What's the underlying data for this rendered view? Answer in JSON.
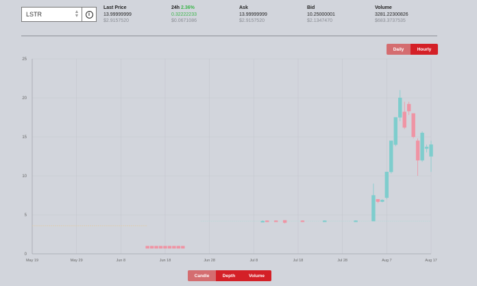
{
  "pair_selector": {
    "value": "LSTR"
  },
  "stats": [
    {
      "label": "Last Price",
      "pct": "",
      "value": "13.99999999",
      "sub": "$2.9157520"
    },
    {
      "label": "24h",
      "pct": "2.36%",
      "value": "0.32222233",
      "sub": "$0.0671086"
    },
    {
      "label": "Ask",
      "pct": "",
      "value": "13.99999999",
      "sub": "$2.9157520"
    },
    {
      "label": "Bid",
      "pct": "",
      "value": "10.25000001",
      "sub": "$2.1347470"
    },
    {
      "label": "Volume",
      "pct": "",
      "value": "3281.22300826",
      "sub": "$683.3737535"
    }
  ],
  "period_toggle": {
    "daily": "Daily",
    "hourly": "Hourly",
    "active": "Hourly"
  },
  "view_toggle": {
    "candle": "Candle",
    "depth": "Depth",
    "volume": "Volume"
  },
  "colors": {
    "up": "#7ecdcd",
    "down": "#ef94a4",
    "accent": "#d42027"
  },
  "chart_data": {
    "type": "candlestick",
    "x_ticks": [
      "May 19",
      "May 29",
      "Jun 8",
      "Jun 18",
      "Jun 28",
      "Jul 8",
      "Jul 18",
      "Jul 28",
      "Aug 7",
      "Aug 17"
    ],
    "y_ticks": [
      "0",
      "5",
      "10",
      "15",
      "20",
      "25"
    ],
    "ylim": [
      0,
      25
    ],
    "grid": true,
    "flat_lines": [
      {
        "from": "May 19",
        "to": "Jun 14",
        "value": 3.6,
        "color": "#e3cba6"
      },
      {
        "from": "Jun 26",
        "to": "Aug 17",
        "value": 4.2,
        "color": "#b7d8d8"
      }
    ],
    "candles": [
      {
        "x": "Jun 14",
        "o": 1.0,
        "h": 1.0,
        "l": 0.7,
        "c": 0.7
      },
      {
        "x": "Jun 15",
        "o": 1.0,
        "h": 1.0,
        "l": 0.7,
        "c": 0.7
      },
      {
        "x": "Jun 16",
        "o": 1.0,
        "h": 1.0,
        "l": 0.7,
        "c": 0.7
      },
      {
        "x": "Jun 17",
        "o": 1.0,
        "h": 1.0,
        "l": 0.7,
        "c": 0.7
      },
      {
        "x": "Jun 18",
        "o": 1.0,
        "h": 1.0,
        "l": 0.7,
        "c": 0.7
      },
      {
        "x": "Jun 19",
        "o": 1.0,
        "h": 1.0,
        "l": 0.7,
        "c": 0.7
      },
      {
        "x": "Jun 20",
        "o": 1.0,
        "h": 1.0,
        "l": 0.7,
        "c": 0.7
      },
      {
        "x": "Jun 21",
        "o": 1.0,
        "h": 1.0,
        "l": 0.7,
        "c": 0.7
      },
      {
        "x": "Jun 22",
        "o": 1.0,
        "h": 1.0,
        "l": 0.7,
        "c": 0.7
      },
      {
        "x": "Jul 10",
        "o": 4.2,
        "h": 4.3,
        "l": 4.1,
        "c": 4.2
      },
      {
        "x": "Jul 11",
        "o": 4.25,
        "h": 4.3,
        "l": 4.1,
        "c": 4.15
      },
      {
        "x": "Jul 13",
        "o": 4.25,
        "h": 4.3,
        "l": 4.1,
        "c": 4.15
      },
      {
        "x": "Jul 15",
        "o": 4.3,
        "h": 4.3,
        "l": 3.9,
        "c": 4.0
      },
      {
        "x": "Jul 19",
        "o": 4.25,
        "h": 4.3,
        "l": 4.1,
        "c": 4.15
      },
      {
        "x": "Jul 24",
        "o": 4.15,
        "h": 4.3,
        "l": 4.1,
        "c": 4.25
      },
      {
        "x": "Jul 31",
        "o": 4.15,
        "h": 4.3,
        "l": 4.1,
        "c": 4.25
      },
      {
        "x": "Aug 4",
        "o": 4.2,
        "h": 9.0,
        "l": 4.2,
        "c": 7.5
      },
      {
        "x": "Aug 5",
        "o": 7.0,
        "h": 7.0,
        "l": 6.5,
        "c": 6.7
      },
      {
        "x": "Aug 6",
        "o": 6.7,
        "h": 7.0,
        "l": 6.6,
        "c": 6.9
      },
      {
        "x": "Aug 7",
        "o": 7.2,
        "h": 10.5,
        "l": 7.0,
        "c": 10.5
      },
      {
        "x": "Aug 8",
        "o": 10.5,
        "h": 14.5,
        "l": 10.3,
        "c": 14.5
      },
      {
        "x": "Aug 9",
        "o": 14.0,
        "h": 17.5,
        "l": 13.8,
        "c": 17.5
      },
      {
        "x": "Aug 10",
        "o": 17.5,
        "h": 21.0,
        "l": 17.0,
        "c": 20.0
      },
      {
        "x": "Aug 11",
        "o": 18.2,
        "h": 19.5,
        "l": 16.0,
        "c": 16.2
      },
      {
        "x": "Aug 12",
        "o": 19.2,
        "h": 19.5,
        "l": 17.8,
        "c": 18.3
      },
      {
        "x": "Aug 13",
        "o": 18.0,
        "h": 18.0,
        "l": 14.8,
        "c": 15.0
      },
      {
        "x": "Aug 14",
        "o": 14.5,
        "h": 14.8,
        "l": 10.0,
        "c": 12.0
      },
      {
        "x": "Aug 15",
        "o": 12.0,
        "h": 15.7,
        "l": 11.8,
        "c": 15.5
      },
      {
        "x": "Aug 16",
        "o": 13.5,
        "h": 14.0,
        "l": 13.0,
        "c": 13.7
      },
      {
        "x": "Aug 17",
        "o": 12.5,
        "h": 14.5,
        "l": 10.5,
        "c": 14.0
      }
    ]
  }
}
